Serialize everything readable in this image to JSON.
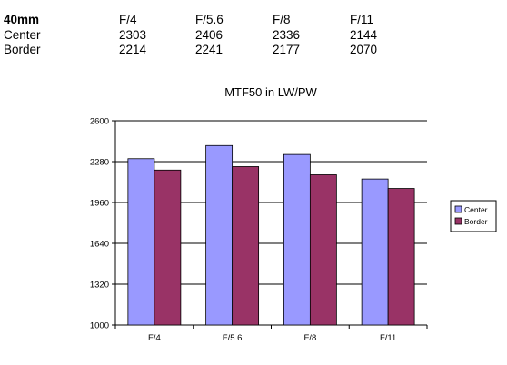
{
  "table": {
    "header": [
      "40mm",
      "F/4",
      "F/5.6",
      "F/8",
      "F/11"
    ],
    "rows": [
      [
        "Center",
        "2303",
        "2406",
        "2336",
        "2144"
      ],
      [
        "Border",
        "2214",
        "2241",
        "2177",
        "2070"
      ]
    ]
  },
  "chart_data": {
    "type": "bar",
    "title": "MTF50 in LW/PW",
    "xlabel": "",
    "ylabel": "",
    "categories": [
      "F/4",
      "F/5.6",
      "F/8",
      "F/11"
    ],
    "series": [
      {
        "name": "Center",
        "values": [
          2303,
          2406,
          2336,
          2144
        ],
        "color": "#9999ff"
      },
      {
        "name": "Border",
        "values": [
          2214,
          2241,
          2177,
          2070
        ],
        "color": "#993366"
      }
    ],
    "ylim": [
      1000,
      2600
    ],
    "yticks": [
      1000,
      1320,
      1640,
      1960,
      2280,
      2600
    ],
    "grid": true,
    "legend": "right"
  }
}
